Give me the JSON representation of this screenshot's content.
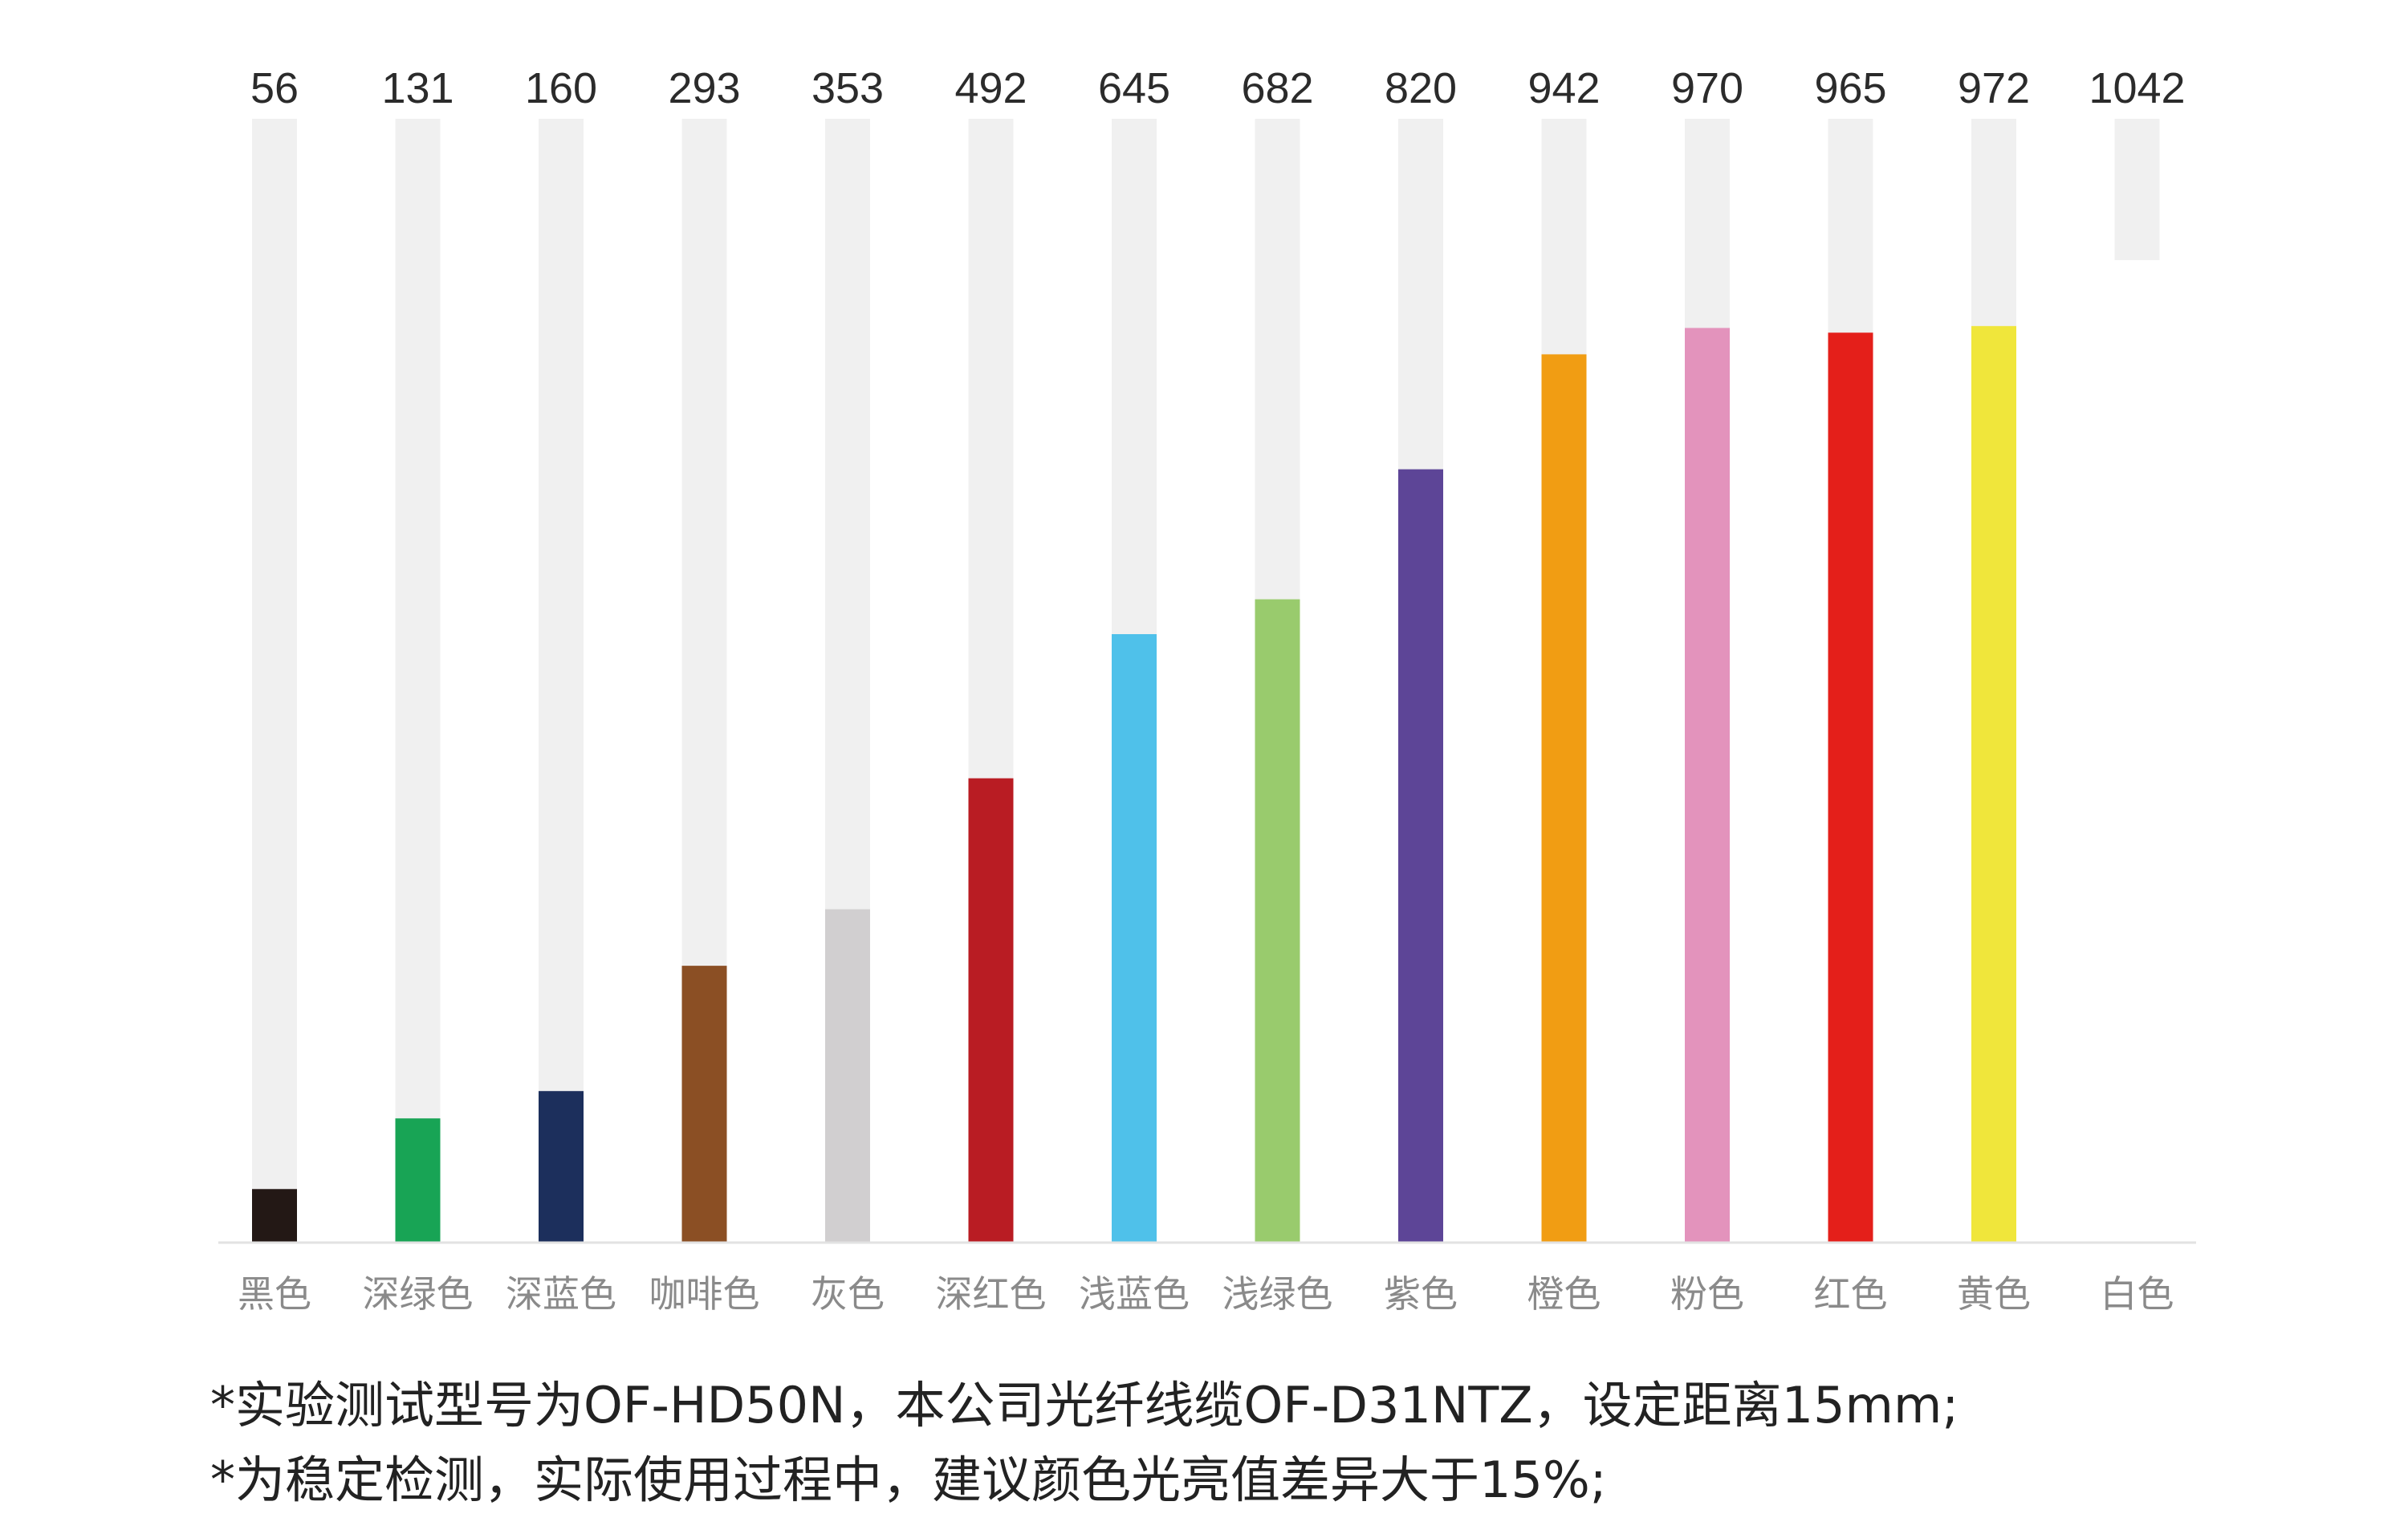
{
  "chart_data": {
    "type": "bar",
    "categories": [
      "黑色",
      "深绿色",
      "深蓝色",
      "咖啡色",
      "灰色",
      "深红色",
      "浅蓝色",
      "浅绿色",
      "紫色",
      "橙色",
      "粉色",
      "红色",
      "黄色",
      "白色"
    ],
    "values": [
      56,
      131,
      160,
      293,
      353,
      492,
      645,
      682,
      820,
      942,
      970,
      965,
      972,
      1042
    ],
    "value_labels": [
      "56",
      "131",
      "160",
      "293",
      "353",
      "492",
      "645",
      "682",
      "820",
      "942",
      "970",
      "965",
      "972",
      "1042"
    ],
    "bar_colors": [
      "#231815",
      "#18a455",
      "#1c2f5c",
      "#8b4f24",
      "#d1cfd0",
      "#b91c23",
      "#4fc1ea",
      "#99cb6d",
      "#5d4597",
      "#f19d13",
      "#e393bc",
      "#e41f1a",
      "#f0e63b",
      "#ffffff"
    ],
    "track_color": "#f0f0f0",
    "ylim": [
      0,
      1192
    ],
    "grid": false,
    "legend": "none"
  },
  "footnotes": {
    "line1": "*实验测试型号为OF-HD50N，本公司光纤线缆OF-D31NTZ，设定距离15mm;",
    "line2": "*为稳定检测，实际使用过程中，建议颜色光亮值差异大于15%;"
  }
}
